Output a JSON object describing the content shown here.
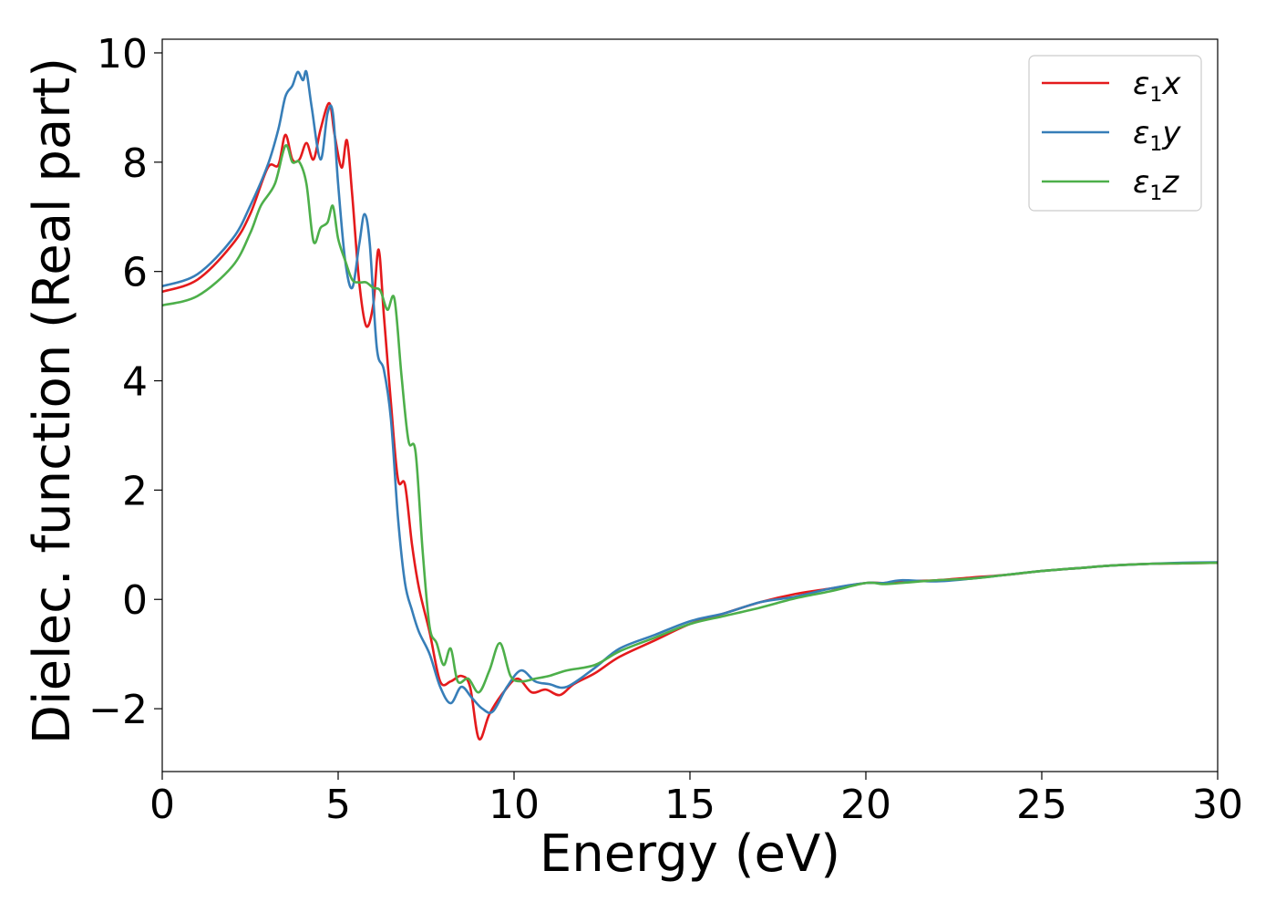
{
  "chart_data": {
    "type": "line",
    "title": "",
    "xlabel": "Energy (eV)",
    "ylabel": "Dielec. function (Real part)",
    "xlim": [
      0,
      30
    ],
    "ylim": [
      -3.15,
      10.25
    ],
    "xticks": [
      0,
      5,
      10,
      15,
      20,
      25,
      30
    ],
    "yticks": [
      -2,
      0,
      2,
      4,
      6,
      8,
      10
    ],
    "xtick_labels": [
      "0",
      "5",
      "10",
      "15",
      "20",
      "25",
      "30"
    ],
    "ytick_labels": [
      "−2",
      "0",
      "2",
      "4",
      "6",
      "8",
      "10"
    ],
    "grid": false,
    "legend_position": "top-right",
    "series": [
      {
        "name": "ε1x",
        "legend": {
          "base": "ε",
          "sub": "1",
          "tail": "x"
        },
        "color": "#e41a1c",
        "x": [
          0,
          1,
          2,
          2.5,
          3,
          3.3,
          3.5,
          3.7,
          3.9,
          4.1,
          4.3,
          4.5,
          4.75,
          4.9,
          5.1,
          5.25,
          5.4,
          5.6,
          5.8,
          6.0,
          6.15,
          6.3,
          6.5,
          6.7,
          6.9,
          7.1,
          7.3,
          7.6,
          7.9,
          8.2,
          8.5,
          8.75,
          9.0,
          9.3,
          9.7,
          10.1,
          10.5,
          10.9,
          11.3,
          11.7,
          12.3,
          13,
          14,
          15,
          16,
          17,
          18,
          19,
          20,
          20.5,
          21,
          22,
          23,
          24,
          25,
          26,
          27,
          28,
          29,
          30
        ],
        "y": [
          5.63,
          5.85,
          6.5,
          7.05,
          7.9,
          7.95,
          8.5,
          8.05,
          8.05,
          8.35,
          8.05,
          8.6,
          9.08,
          8.5,
          7.9,
          8.4,
          7.4,
          5.8,
          5.0,
          5.4,
          6.4,
          5.2,
          3.6,
          2.2,
          2.1,
          1.0,
          0.2,
          -0.6,
          -1.5,
          -1.5,
          -1.4,
          -1.6,
          -2.55,
          -2.1,
          -1.7,
          -1.45,
          -1.7,
          -1.65,
          -1.75,
          -1.55,
          -1.35,
          -1.05,
          -0.75,
          -0.45,
          -0.25,
          -0.05,
          0.1,
          0.2,
          0.3,
          0.3,
          0.33,
          0.35,
          0.4,
          0.45,
          0.52,
          0.57,
          0.62,
          0.65,
          0.66,
          0.67
        ]
      },
      {
        "name": "ε1y",
        "legend": {
          "base": "ε",
          "sub": "1",
          "tail": "y"
        },
        "color": "#377eb8",
        "x": [
          0,
          1,
          2,
          2.5,
          3,
          3.3,
          3.5,
          3.7,
          3.85,
          4.0,
          4.1,
          4.25,
          4.5,
          4.7,
          4.85,
          5.0,
          5.2,
          5.4,
          5.6,
          5.75,
          5.9,
          6.1,
          6.3,
          6.5,
          6.7,
          6.9,
          7.1,
          7.3,
          7.6,
          7.9,
          8.2,
          8.5,
          8.8,
          9.1,
          9.4,
          9.8,
          10.2,
          10.6,
          11.0,
          11.5,
          12.3,
          13,
          14,
          15,
          16,
          17,
          18,
          19,
          20,
          20.5,
          21,
          22,
          23,
          24,
          25,
          26,
          27,
          28,
          29,
          30
        ],
        "y": [
          5.73,
          5.95,
          6.6,
          7.2,
          7.95,
          8.6,
          9.2,
          9.4,
          9.65,
          9.5,
          9.65,
          9.0,
          8.05,
          8.9,
          8.9,
          7.6,
          6.2,
          5.7,
          6.5,
          7.05,
          6.5,
          4.6,
          4.2,
          3.3,
          1.5,
          0.3,
          -0.2,
          -0.6,
          -1.0,
          -1.6,
          -1.9,
          -1.6,
          -1.8,
          -2.0,
          -2.05,
          -1.6,
          -1.3,
          -1.5,
          -1.55,
          -1.6,
          -1.25,
          -0.9,
          -0.65,
          -0.4,
          -0.25,
          -0.05,
          0.05,
          0.2,
          0.3,
          0.3,
          0.35,
          0.33,
          0.38,
          0.45,
          0.52,
          0.57,
          0.62,
          0.65,
          0.67,
          0.68
        ]
      },
      {
        "name": "ε1z",
        "legend": {
          "base": "ε",
          "sub": "1",
          "tail": "z"
        },
        "color": "#4daf4a",
        "x": [
          0,
          1,
          2,
          2.5,
          2.8,
          3.2,
          3.5,
          3.7,
          3.9,
          4.1,
          4.3,
          4.5,
          4.7,
          4.85,
          5.0,
          5.2,
          5.4,
          5.6,
          5.8,
          6.0,
          6.2,
          6.4,
          6.6,
          6.8,
          7.0,
          7.2,
          7.4,
          7.6,
          7.8,
          8.0,
          8.2,
          8.4,
          8.7,
          9.0,
          9.3,
          9.6,
          9.9,
          10.2,
          10.6,
          11,
          11.5,
          12.3,
          13,
          14,
          15,
          16,
          17,
          18,
          19,
          20,
          20.5,
          21,
          22,
          23,
          24,
          25,
          26,
          27,
          28,
          29,
          30
        ],
        "y": [
          5.38,
          5.55,
          6.1,
          6.7,
          7.2,
          7.6,
          8.3,
          8.0,
          8.0,
          7.6,
          6.55,
          6.8,
          6.9,
          7.2,
          6.6,
          6.2,
          5.85,
          5.8,
          5.8,
          5.7,
          5.65,
          5.3,
          5.5,
          4.1,
          2.9,
          2.7,
          0.9,
          -0.5,
          -0.8,
          -1.2,
          -0.9,
          -1.5,
          -1.45,
          -1.7,
          -1.3,
          -0.8,
          -1.4,
          -1.5,
          -1.45,
          -1.4,
          -1.3,
          -1.2,
          -0.95,
          -0.7,
          -0.45,
          -0.3,
          -0.15,
          0.02,
          0.15,
          0.3,
          0.28,
          0.3,
          0.35,
          0.38,
          0.45,
          0.52,
          0.57,
          0.62,
          0.65,
          0.66,
          0.67
        ]
      }
    ]
  }
}
